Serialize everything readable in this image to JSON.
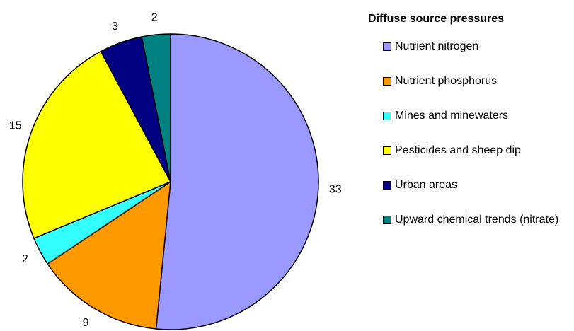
{
  "chart_data": {
    "type": "pie",
    "legend_title": "Diffuse source pressures",
    "categories": [
      "Nutrient nitrogen",
      "Nutrient phosphorus",
      "Mines and minewaters",
      "Pesticides and sheep dip",
      "Urban areas",
      "Upward chemical trends (nitrate)"
    ],
    "values": [
      33,
      9,
      2,
      15,
      3,
      2
    ],
    "colors": [
      "#9999ff",
      "#ff9900",
      "#33ffff",
      "#ffff00",
      "#000080",
      "#008080"
    ],
    "legend": "right"
  }
}
